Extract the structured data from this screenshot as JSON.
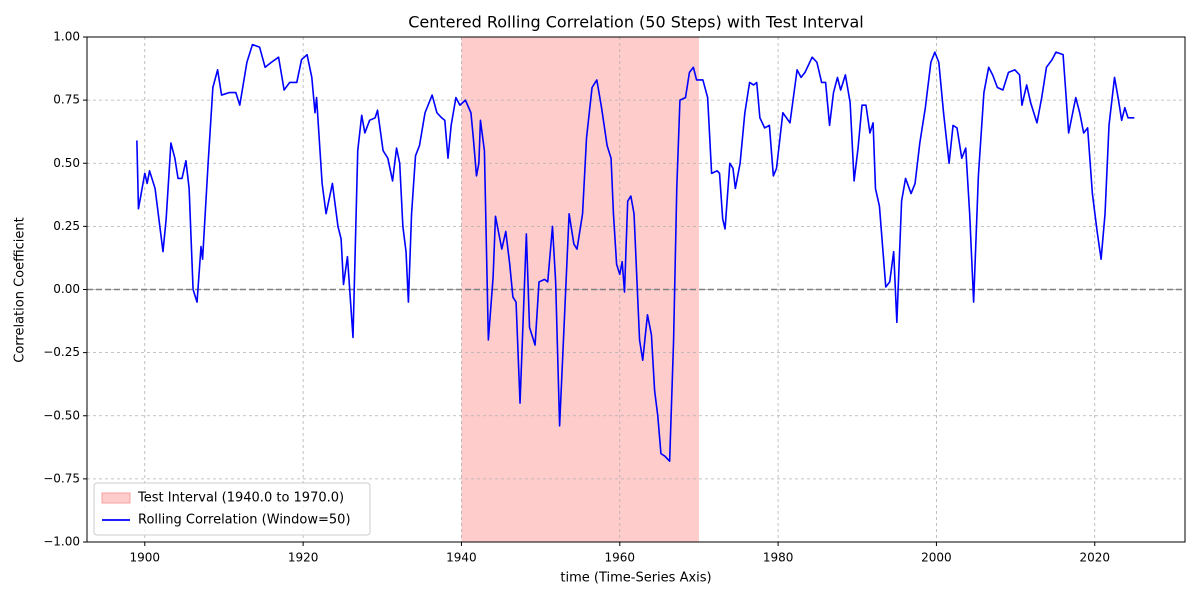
{
  "chart_data": {
    "type": "line",
    "title": "Centered Rolling Correlation (50 Steps) with Test Interval",
    "xlabel": "time (Time-Series Axis)",
    "ylabel": "Correlation Coefficient",
    "xlim": [
      1892.7,
      2031.4
    ],
    "ylim": [
      -1,
      1
    ],
    "xticks": [
      1900,
      1920,
      1940,
      1960,
      1980,
      2000,
      2020
    ],
    "yticks": [
      {
        "value": -1,
        "label": "−1.00"
      },
      {
        "value": -0.75,
        "label": "−0.75"
      },
      {
        "value": -0.5,
        "label": "−0.50"
      },
      {
        "value": -0.25,
        "label": "−0.25"
      },
      {
        "value": 0,
        "label": "0.00"
      },
      {
        "value": 0.25,
        "label": "0.25"
      },
      {
        "value": 0.5,
        "label": "0.50"
      },
      {
        "value": 0.75,
        "label": "0.75"
      },
      {
        "value": 1,
        "label": "1.00"
      }
    ],
    "grid": true,
    "legend": "lower left",
    "span": {
      "x": [
        1940,
        1970
      ],
      "label": "Test Interval (1940.0 to 1970.0)",
      "color": "#ffcccc"
    },
    "hline": {
      "y": 0,
      "color": "#808080",
      "style": "dashed"
    },
    "series": [
      {
        "name": "Rolling Correlation (Window=50)",
        "color": "#0000ff",
        "x": [
          1899.0,
          1899.2,
          1900.0,
          1900.3,
          1900.6,
          1901.3,
          1901.9,
          1902.3,
          1902.7,
          1903.3,
          1903.8,
          1904.2,
          1904.7,
          1905.2,
          1905.6,
          1906.1,
          1906.6,
          1907.1,
          1907.3,
          1908.0,
          1908.6,
          1909.2,
          1909.7,
          1910.7,
          1911.5,
          1912.0,
          1912.9,
          1913.6,
          1914.5,
          1915.2,
          1916.0,
          1916.9,
          1917.6,
          1918.3,
          1919.2,
          1919.8,
          1920.5,
          1921.1,
          1921.5,
          1921.7,
          1922.4,
          1922.9,
          1923.7,
          1924.4,
          1924.8,
          1925.1,
          1925.6,
          1926.3,
          1926.9,
          1927.4,
          1927.8,
          1928.4,
          1929.1,
          1929.4,
          1930.1,
          1930.7,
          1931.3,
          1931.8,
          1932.2,
          1932.6,
          1933.0,
          1933.3,
          1933.7,
          1934.2,
          1934.7,
          1935.4,
          1936.3,
          1936.9,
          1937.5,
          1937.9,
          1938.3,
          1938.7,
          1939.3,
          1939.8,
          1940.5,
          1941.2,
          1941.5,
          1941.9,
          1942.2,
          1942.4,
          1942.9,
          1943.4,
          1944.0,
          1944.3,
          1945.1,
          1945.6,
          1946.1,
          1946.5,
          1946.9,
          1947.4,
          1948.2,
          1948.6,
          1949.3,
          1949.8,
          1950.5,
          1950.9,
          1951.5,
          1951.9,
          1952.4,
          1953.0,
          1953.6,
          1954.2,
          1954.6,
          1955.3,
          1955.8,
          1956.5,
          1957.1,
          1957.7,
          1958.4,
          1958.9,
          1959.2,
          1959.6,
          1960.0,
          1960.3,
          1960.6,
          1961.0,
          1961.4,
          1961.8,
          1962.5,
          1962.9,
          1963.5,
          1964.0,
          1964.4,
          1964.8,
          1965.2,
          1965.7,
          1966.3,
          1966.8,
          1967.2,
          1967.6,
          1968.3,
          1968.8,
          1969.3,
          1969.7,
          1970.5,
          1971.1,
          1971.6,
          1972.3,
          1972.6,
          1973.0,
          1973.3,
          1973.9,
          1974.3,
          1974.6,
          1975.2,
          1975.8,
          1976.4,
          1976.9,
          1977.3,
          1977.7,
          1978.3,
          1978.9,
          1979.4,
          1979.8,
          1980.6,
          1981.5,
          1982.4,
          1982.9,
          1983.4,
          1984.3,
          1984.9,
          1985.5,
          1986.0,
          1986.5,
          1987.0,
          1987.5,
          1987.9,
          1988.5,
          1989.1,
          1989.6,
          1990.1,
          1990.6,
          1991.1,
          1991.6,
          1992.0,
          1992.3,
          1992.8,
          1993.6,
          1994.1,
          1994.6,
          1995.0,
          1995.6,
          1996.1,
          1996.8,
          1997.3,
          1997.9,
          1998.6,
          1999.3,
          1999.8,
          2000.3,
          2000.9,
          2001.6,
          2002.1,
          2002.6,
          2003.2,
          2003.7,
          2004.2,
          2004.7,
          2005.3,
          2006.0,
          2006.6,
          2007.1,
          2007.7,
          2008.4,
          2009.1,
          2009.9,
          2010.5,
          2010.8,
          2011.4,
          2011.9,
          2012.7,
          2013.3,
          2013.9,
          2014.6,
          2015.1,
          2016.0,
          2016.3,
          2016.7,
          2017.6,
          2018.1,
          2018.6,
          2019.1,
          2019.7,
          2020.3,
          2020.8,
          2021.3,
          2021.8,
          2022.5,
          2023.0,
          2023.4,
          2023.8,
          2024.2,
          2025.0
        ],
        "values": [
          0.59,
          0.32,
          0.46,
          0.42,
          0.47,
          0.4,
          0.25,
          0.15,
          0.28,
          0.58,
          0.52,
          0.44,
          0.44,
          0.51,
          0.4,
          0.0,
          -0.05,
          0.17,
          0.12,
          0.5,
          0.8,
          0.87,
          0.77,
          0.78,
          0.78,
          0.73,
          0.9,
          0.97,
          0.96,
          0.88,
          0.9,
          0.92,
          0.79,
          0.82,
          0.82,
          0.91,
          0.93,
          0.84,
          0.7,
          0.76,
          0.42,
          0.3,
          0.42,
          0.25,
          0.2,
          0.02,
          0.13,
          -0.19,
          0.55,
          0.69,
          0.62,
          0.67,
          0.68,
          0.71,
          0.55,
          0.52,
          0.43,
          0.56,
          0.5,
          0.25,
          0.15,
          -0.05,
          0.3,
          0.53,
          0.57,
          0.7,
          0.77,
          0.7,
          0.68,
          0.67,
          0.52,
          0.65,
          0.76,
          0.73,
          0.75,
          0.7,
          0.6,
          0.45,
          0.5,
          0.67,
          0.55,
          -0.2,
          0.05,
          0.29,
          0.16,
          0.23,
          0.1,
          -0.03,
          -0.05,
          -0.45,
          0.22,
          -0.15,
          -0.22,
          0.03,
          0.04,
          0.03,
          0.25,
          0.03,
          -0.54,
          -0.12,
          0.3,
          0.18,
          0.16,
          0.3,
          0.6,
          0.8,
          0.83,
          0.72,
          0.57,
          0.52,
          0.3,
          0.1,
          0.06,
          0.11,
          -0.01,
          0.35,
          0.37,
          0.3,
          -0.2,
          -0.28,
          -0.1,
          -0.18,
          -0.4,
          -0.5,
          -0.65,
          -0.66,
          -0.68,
          -0.2,
          0.4,
          0.75,
          0.76,
          0.86,
          0.88,
          0.83,
          0.83,
          0.76,
          0.46,
          0.47,
          0.46,
          0.28,
          0.24,
          0.5,
          0.48,
          0.4,
          0.5,
          0.7,
          0.82,
          0.81,
          0.82,
          0.68,
          0.64,
          0.65,
          0.45,
          0.48,
          0.7,
          0.66,
          0.87,
          0.84,
          0.86,
          0.92,
          0.9,
          0.82,
          0.82,
          0.65,
          0.78,
          0.84,
          0.79,
          0.85,
          0.74,
          0.43,
          0.56,
          0.73,
          0.73,
          0.62,
          0.66,
          0.4,
          0.33,
          0.01,
          0.03,
          0.15,
          -0.13,
          0.35,
          0.44,
          0.38,
          0.42,
          0.58,
          0.72,
          0.9,
          0.94,
          0.9,
          0.7,
          0.5,
          0.65,
          0.64,
          0.52,
          0.56,
          0.3,
          -0.05,
          0.45,
          0.78,
          0.88,
          0.85,
          0.8,
          0.79,
          0.86,
          0.87,
          0.85,
          0.73,
          0.81,
          0.74,
          0.66,
          0.76,
          0.88,
          0.91,
          0.94,
          0.93,
          0.8,
          0.62,
          0.76,
          0.7,
          0.62,
          0.64,
          0.38,
          0.23,
          0.12,
          0.3,
          0.65,
          0.84,
          0.75,
          0.67,
          0.72,
          0.68,
          0.68
        ]
      }
    ]
  }
}
